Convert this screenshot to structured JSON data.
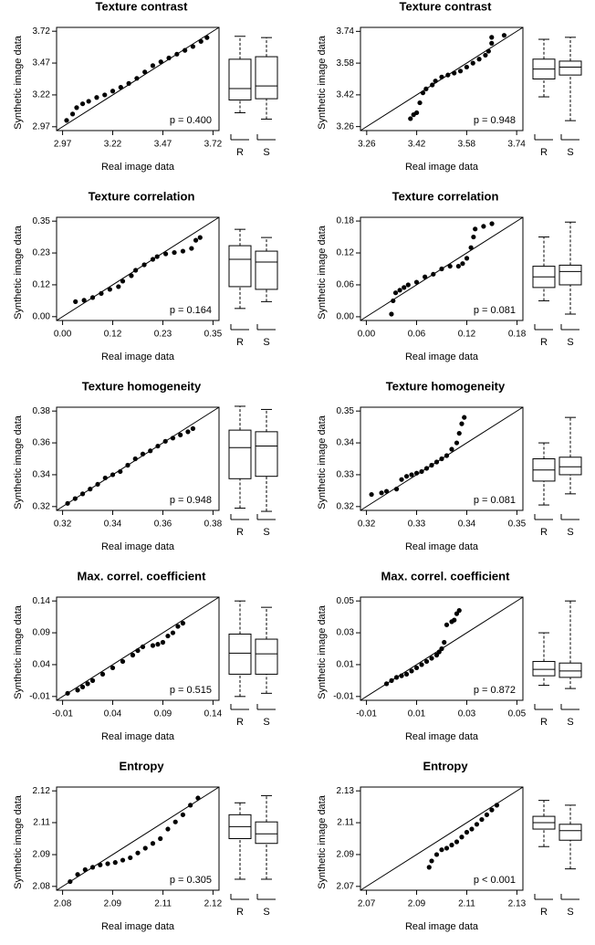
{
  "chart_data": [
    {
      "type": "qq",
      "title": "Texture contrast",
      "xlabel": "Real image data",
      "ylabel": "Synthetic image data",
      "annotation": "p = 0.400",
      "xlim": [
        2.94,
        3.75
      ],
      "ylim": [
        2.94,
        3.75
      ],
      "xticks": [
        2.97,
        3.22,
        3.47,
        3.72
      ],
      "yticks": [
        2.97,
        3.22,
        3.47,
        3.72
      ],
      "x": [
        2.99,
        3.02,
        3.04,
        3.07,
        3.1,
        3.14,
        3.18,
        3.22,
        3.26,
        3.3,
        3.34,
        3.38,
        3.42,
        3.46,
        3.5,
        3.54,
        3.58,
        3.62,
        3.66,
        3.69
      ],
      "values": [
        3.02,
        3.07,
        3.12,
        3.15,
        3.17,
        3.2,
        3.22,
        3.25,
        3.28,
        3.31,
        3.35,
        3.4,
        3.45,
        3.48,
        3.51,
        3.54,
        3.57,
        3.6,
        3.64,
        3.67
      ],
      "boxes": [
        {
          "name": "R",
          "stats": [
            3.08,
            3.18,
            3.27,
            3.5,
            3.68
          ]
        },
        {
          "name": "S",
          "stats": [
            3.03,
            3.19,
            3.29,
            3.52,
            3.67
          ]
        }
      ]
    },
    {
      "type": "qq",
      "title": "Texture contrast",
      "xlabel": "Real image data",
      "ylabel": "Synthetic image data",
      "annotation": "p = 0.948",
      "xlim": [
        3.24,
        3.76
      ],
      "ylim": [
        3.24,
        3.76
      ],
      "xticks": [
        3.26,
        3.42,
        3.58,
        3.74
      ],
      "yticks": [
        3.26,
        3.42,
        3.58,
        3.74
      ],
      "x": [
        3.4,
        3.41,
        3.42,
        3.43,
        3.44,
        3.45,
        3.47,
        3.48,
        3.5,
        3.52,
        3.54,
        3.56,
        3.58,
        3.6,
        3.62,
        3.64,
        3.65,
        3.66,
        3.66,
        3.7
      ],
      "values": [
        3.3,
        3.32,
        3.33,
        3.38,
        3.43,
        3.45,
        3.47,
        3.49,
        3.51,
        3.52,
        3.53,
        3.54,
        3.56,
        3.58,
        3.6,
        3.62,
        3.64,
        3.68,
        3.71,
        3.72
      ],
      "boxes": [
        {
          "name": "R",
          "stats": [
            3.41,
            3.5,
            3.55,
            3.6,
            3.7
          ]
        },
        {
          "name": "S",
          "stats": [
            3.29,
            3.52,
            3.56,
            3.59,
            3.71
          ]
        }
      ]
    },
    {
      "type": "qq",
      "title": "Texture correlation",
      "xlabel": "Real image data",
      "ylabel": "Synthetic image data",
      "annotation": "p = 0.164",
      "xlim": [
        -0.014,
        0.364
      ],
      "ylim": [
        -0.014,
        0.364
      ],
      "xticks": [
        {
          "value": 0,
          "label": "0.00"
        },
        {
          "value": 0.1167,
          "label": "0.12"
        },
        {
          "value": 0.2333,
          "label": "0.23"
        },
        0.35
      ],
      "yticks": [
        {
          "value": 0,
          "label": "0.00"
        },
        {
          "value": 0.1167,
          "label": "0.12"
        },
        {
          "value": 0.2333,
          "label": "0.23"
        },
        0.35
      ],
      "x": [
        0.03,
        0.05,
        0.07,
        0.09,
        0.11,
        0.13,
        0.14,
        0.16,
        0.17,
        0.19,
        0.21,
        0.22,
        0.24,
        0.26,
        0.28,
        0.3,
        0.31,
        0.32
      ],
      "values": [
        0.055,
        0.06,
        0.07,
        0.085,
        0.1,
        0.11,
        0.13,
        0.15,
        0.17,
        0.19,
        0.21,
        0.22,
        0.23,
        0.235,
        0.24,
        0.25,
        0.28,
        0.29
      ],
      "boxes": [
        {
          "name": "R",
          "stats": [
            0.03,
            0.11,
            0.21,
            0.26,
            0.32
          ]
        },
        {
          "name": "S",
          "stats": [
            0.055,
            0.1,
            0.2,
            0.24,
            0.29
          ]
        }
      ]
    },
    {
      "type": "qq",
      "title": "Texture correlation",
      "xlabel": "Real image data",
      "ylabel": "Synthetic image data",
      "annotation": "p = 0.081",
      "xlim": [
        -0.007,
        0.187
      ],
      "ylim": [
        -0.007,
        0.187
      ],
      "xticks": [
        {
          "value": 0,
          "label": "0.00"
        },
        0.06,
        0.12,
        0.18
      ],
      "yticks": [
        {
          "value": 0,
          "label": "0.00"
        },
        0.06,
        0.12,
        0.18
      ],
      "x": [
        0.03,
        0.032,
        0.035,
        0.04,
        0.045,
        0.05,
        0.06,
        0.07,
        0.08,
        0.09,
        0.1,
        0.11,
        0.115,
        0.12,
        0.125,
        0.128,
        0.13,
        0.14,
        0.15
      ],
      "values": [
        0.005,
        0.03,
        0.045,
        0.05,
        0.055,
        0.06,
        0.065,
        0.075,
        0.08,
        0.09,
        0.095,
        0.095,
        0.1,
        0.11,
        0.13,
        0.15,
        0.165,
        0.17,
        0.175
      ],
      "boxes": [
        {
          "name": "R",
          "stats": [
            0.03,
            0.055,
            0.075,
            0.095,
            0.15
          ]
        },
        {
          "name": "S",
          "stats": [
            0.005,
            0.06,
            0.085,
            0.097,
            0.178
          ]
        }
      ]
    },
    {
      "type": "qq",
      "title": "Texture homogeneity",
      "xlabel": "Real image data",
      "ylabel": "Synthetic image data",
      "annotation": "p = 0.948",
      "xlim": [
        0.3176,
        0.3824
      ],
      "ylim": [
        0.3176,
        0.3824
      ],
      "xticks": [
        0.32,
        0.34,
        0.36,
        0.38
      ],
      "yticks": [
        0.32,
        0.34,
        0.36,
        0.38
      ],
      "x": [
        0.322,
        0.325,
        0.328,
        0.331,
        0.334,
        0.337,
        0.34,
        0.343,
        0.346,
        0.349,
        0.352,
        0.355,
        0.358,
        0.361,
        0.364,
        0.367,
        0.37,
        0.372
      ],
      "values": [
        0.322,
        0.325,
        0.328,
        0.331,
        0.334,
        0.338,
        0.34,
        0.342,
        0.346,
        0.35,
        0.353,
        0.355,
        0.358,
        0.361,
        0.363,
        0.365,
        0.367,
        0.369
      ],
      "boxes": [
        {
          "name": "R",
          "stats": [
            0.319,
            0.3375,
            0.357,
            0.368,
            0.383
          ]
        },
        {
          "name": "S",
          "stats": [
            0.317,
            0.339,
            0.358,
            0.367,
            0.381
          ]
        }
      ]
    },
    {
      "type": "qq",
      "title": "Texture homogeneity",
      "xlabel": "Real image data",
      "ylabel": "Synthetic image data",
      "annotation": "p = 0.081",
      "xlim": [
        0.3188,
        0.3512
      ],
      "ylim": [
        0.3188,
        0.3512
      ],
      "xticks": [
        0.32,
        0.33,
        0.34,
        0.35
      ],
      "yticks": [
        0.32,
        0.33,
        0.34,
        0.35
      ],
      "x": [
        0.321,
        0.323,
        0.324,
        0.326,
        0.327,
        0.328,
        0.329,
        0.33,
        0.331,
        0.332,
        0.333,
        0.334,
        0.335,
        0.336,
        0.337,
        0.338,
        0.3385,
        0.339,
        0.3395
      ],
      "values": [
        0.3238,
        0.3243,
        0.3248,
        0.3255,
        0.3285,
        0.3295,
        0.33,
        0.3305,
        0.331,
        0.332,
        0.333,
        0.334,
        0.335,
        0.336,
        0.338,
        0.34,
        0.343,
        0.346,
        0.348
      ],
      "boxes": [
        {
          "name": "R",
          "stats": [
            0.3205,
            0.328,
            0.3315,
            0.335,
            0.34
          ]
        },
        {
          "name": "S",
          "stats": [
            0.324,
            0.33,
            0.3325,
            0.3355,
            0.348
          ]
        }
      ]
    },
    {
      "type": "qq",
      "title": "Max. correl. coefficient",
      "xlabel": "Real image data",
      "ylabel": "Synthetic image data",
      "annotation": "p = 0.515",
      "xlim": [
        -0.016,
        0.146
      ],
      "ylim": [
        -0.016,
        0.146
      ],
      "xticks": [
        -0.01,
        0.04,
        0.09,
        0.14
      ],
      "yticks": [
        -0.01,
        0.04,
        0.09,
        0.14
      ],
      "x": [
        -0.005,
        0.005,
        0.01,
        0.015,
        0.02,
        0.03,
        0.04,
        0.05,
        0.06,
        0.065,
        0.07,
        0.08,
        0.085,
        0.09,
        0.095,
        0.1,
        0.105,
        0.11
      ],
      "values": [
        -0.005,
        0.0,
        0.005,
        0.01,
        0.015,
        0.025,
        0.035,
        0.045,
        0.055,
        0.062,
        0.068,
        0.07,
        0.072,
        0.075,
        0.085,
        0.09,
        0.1,
        0.105
      ],
      "boxes": [
        {
          "name": "R",
          "stats": [
            -0.01,
            0.025,
            0.058,
            0.088,
            0.14
          ]
        },
        {
          "name": "S",
          "stats": [
            -0.005,
            0.025,
            0.057,
            0.08,
            0.13
          ]
        }
      ]
    },
    {
      "type": "qq",
      "title": "Max. correl. coefficient",
      "xlabel": "Real image data",
      "ylabel": "Synthetic image data",
      "annotation": "p = 0.872",
      "xlim": [
        -0.0124,
        0.0524
      ],
      "ylim": [
        -0.0124,
        0.0524
      ],
      "xticks": [
        -0.01,
        0.01,
        0.03,
        0.05
      ],
      "yticks": [
        -0.01,
        0.01,
        0.03,
        0.05
      ],
      "x": [
        -0.002,
        0.0,
        0.002,
        0.004,
        0.006,
        0.008,
        0.01,
        0.012,
        0.014,
        0.016,
        0.018,
        0.019,
        0.02,
        0.021,
        0.022,
        0.024,
        0.025,
        0.026,
        0.027
      ],
      "values": [
        -0.002,
        0.0,
        0.002,
        0.003,
        0.004,
        0.006,
        0.008,
        0.01,
        0.012,
        0.014,
        0.016,
        0.018,
        0.02,
        0.024,
        0.035,
        0.037,
        0.038,
        0.042,
        0.044
      ],
      "boxes": [
        {
          "name": "R",
          "stats": [
            -0.003,
            0.003,
            0.007,
            0.012,
            0.03
          ]
        },
        {
          "name": "S",
          "stats": [
            -0.005,
            0.002,
            0.006,
            0.011,
            0.05
          ]
        }
      ]
    },
    {
      "type": "qq",
      "title": "Entropy",
      "xlabel": "Real image data",
      "ylabel": "Synthetic image data",
      "annotation": "p = 0.305",
      "xlim": [
        2.0784,
        2.1216
      ],
      "ylim": [
        2.0784,
        2.1216
      ],
      "xticks": [
        2.08,
        {
          "value": 2.0933,
          "label": "2.09"
        },
        {
          "value": 2.1067,
          "label": "2.11"
        },
        2.12
      ],
      "yticks": [
        2.08,
        {
          "value": 2.0933,
          "label": "2.09"
        },
        {
          "value": 2.1067,
          "label": "2.11"
        },
        2.12
      ],
      "x": [
        2.082,
        2.084,
        2.086,
        2.088,
        2.09,
        2.092,
        2.094,
        2.096,
        2.098,
        2.1,
        2.102,
        2.104,
        2.106,
        2.108,
        2.11,
        2.112,
        2.114,
        2.116
      ],
      "values": [
        2.082,
        2.085,
        2.087,
        2.088,
        2.089,
        2.0895,
        2.09,
        2.091,
        2.092,
        2.094,
        2.096,
        2.098,
        2.1,
        2.104,
        2.107,
        2.11,
        2.114,
        2.117
      ],
      "boxes": [
        {
          "name": "R",
          "stats": [
            2.083,
            2.1,
            2.105,
            2.11,
            2.115
          ]
        },
        {
          "name": "S",
          "stats": [
            2.083,
            2.098,
            2.102,
            2.107,
            2.118
          ]
        }
      ]
    },
    {
      "type": "qq",
      "title": "Entropy",
      "xlabel": "Real image data",
      "ylabel": "Synthetic image data",
      "annotation": "p < 0.001",
      "xlim": [
        2.0676,
        2.1324
      ],
      "ylim": [
        2.0676,
        2.1324
      ],
      "xticks": [
        2.07,
        2.09,
        2.11,
        2.13
      ],
      "yticks": [
        2.07,
        2.09,
        2.11,
        2.13
      ],
      "x": [
        2.095,
        2.096,
        2.098,
        2.1,
        2.102,
        2.104,
        2.106,
        2.108,
        2.11,
        2.112,
        2.114,
        2.116,
        2.118,
        2.12,
        2.122
      ],
      "values": [
        2.082,
        2.086,
        2.09,
        2.093,
        2.094,
        2.096,
        2.098,
        2.101,
        2.104,
        2.106,
        2.109,
        2.112,
        2.115,
        2.118,
        2.121
      ],
      "boxes": [
        {
          "name": "R",
          "stats": [
            2.095,
            2.106,
            2.11,
            2.114,
            2.124
          ]
        },
        {
          "name": "S",
          "stats": [
            2.081,
            2.099,
            2.105,
            2.109,
            2.121
          ]
        }
      ]
    }
  ]
}
